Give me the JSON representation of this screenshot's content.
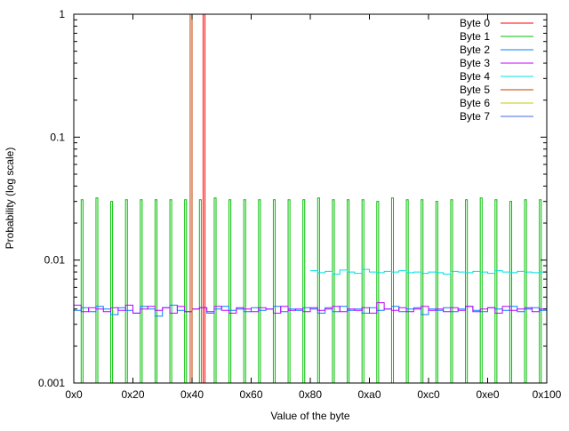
{
  "chart_data": {
    "type": "line",
    "title": "",
    "xlabel": "Value of the byte",
    "ylabel": "Probability (log scale)",
    "xlim": [
      0,
      256
    ],
    "ylim": [
      0.001,
      1
    ],
    "yscale": "log",
    "grid": false,
    "legend_position": "top-right",
    "x_ticks": [
      {
        "v": 0,
        "label": "0x0"
      },
      {
        "v": 32,
        "label": "0x20"
      },
      {
        "v": 64,
        "label": "0x40"
      },
      {
        "v": 96,
        "label": "0x60"
      },
      {
        "v": 128,
        "label": "0x80"
      },
      {
        "v": 160,
        "label": "0xa0"
      },
      {
        "v": 192,
        "label": "0xc0"
      },
      {
        "v": 224,
        "label": "0xe0"
      },
      {
        "v": 256,
        "label": "0x100"
      }
    ],
    "y_ticks": [
      {
        "v": 1,
        "label": "1"
      },
      {
        "v": 0.1,
        "label": "0.1"
      },
      {
        "v": 0.01,
        "label": "0.01"
      },
      {
        "v": 0.001,
        "label": "0.001"
      }
    ],
    "series": [
      {
        "name": "Byte 0",
        "color": "#ff0000",
        "kind": "spikes",
        "x": [
          70
        ],
        "values": [
          1.0
        ]
      },
      {
        "name": "Byte 1",
        "color": "#00c000",
        "kind": "spikes",
        "x": [
          4,
          12,
          20,
          28,
          36,
          44,
          52,
          60,
          68,
          76,
          84,
          92,
          100,
          108,
          116,
          124,
          132,
          140,
          148,
          156,
          164,
          172,
          180,
          188,
          196,
          204,
          212,
          220,
          228,
          236,
          244,
          252
        ],
        "values": [
          0.031,
          0.032,
          0.03,
          0.031,
          0.031,
          0.031,
          0.031,
          0.031,
          0.031,
          0.032,
          0.031,
          0.031,
          0.031,
          0.031,
          0.031,
          0.031,
          0.032,
          0.031,
          0.031,
          0.031,
          0.03,
          0.032,
          0.031,
          0.031,
          0.03,
          0.031,
          0.031,
          0.032,
          0.031,
          0.03,
          0.031,
          0.031
        ]
      },
      {
        "name": "Byte 2",
        "color": "#0080ff",
        "kind": "steps",
        "x0": 0,
        "step": 4,
        "values": [
          0.0039,
          0.0041,
          0.0038,
          0.0042,
          0.004,
          0.0036,
          0.0041,
          0.0039,
          0.0037,
          0.0042,
          0.004,
          0.0035,
          0.0041,
          0.0043,
          0.0039,
          0.0038,
          0.004,
          0.0041,
          0.0037,
          0.004,
          0.0042,
          0.0039,
          0.004,
          0.0038,
          0.0041,
          0.0039,
          0.004,
          0.0042,
          0.0038,
          0.004,
          0.0039,
          0.0041,
          0.004,
          0.0037,
          0.0041,
          0.0038,
          0.0042,
          0.0039,
          0.004,
          0.0037,
          0.0041,
          0.0039,
          0.004,
          0.0042,
          0.0038,
          0.004,
          0.0041,
          0.0036,
          0.004,
          0.0039,
          0.0041,
          0.0038,
          0.004,
          0.0042,
          0.0039,
          0.0038,
          0.0041,
          0.004,
          0.0039,
          0.0042,
          0.0038,
          0.004,
          0.0041,
          0.0039
        ]
      },
      {
        "name": "Byte 3",
        "color": "#c000ff",
        "kind": "steps",
        "x0": 0,
        "step": 4,
        "values": [
          0.0043,
          0.0038,
          0.0041,
          0.004,
          0.0038,
          0.0041,
          0.0039,
          0.0043,
          0.0037,
          0.004,
          0.0042,
          0.0039,
          0.0041,
          0.0037,
          0.0042,
          0.0038,
          0.004,
          0.0041,
          0.0038,
          0.0042,
          0.0039,
          0.0037,
          0.0041,
          0.004,
          0.0038,
          0.0041,
          0.004,
          0.0037,
          0.0042,
          0.0039,
          0.004,
          0.0038,
          0.0041,
          0.0039,
          0.004,
          0.0042,
          0.0038,
          0.004,
          0.0039,
          0.0041,
          0.0037,
          0.0045,
          0.004,
          0.0039,
          0.0041,
          0.0038,
          0.004,
          0.0042,
          0.0039,
          0.004,
          0.0038,
          0.0041,
          0.0039,
          0.0042,
          0.0038,
          0.004,
          0.0041,
          0.0037,
          0.0042,
          0.0039,
          0.004,
          0.0041,
          0.0038,
          0.004
        ]
      },
      {
        "name": "Byte 4",
        "color": "#00e0e0",
        "kind": "steps",
        "x0": 128,
        "step": 4,
        "values": [
          0.0082,
          0.0079,
          0.0081,
          0.0077,
          0.0083,
          0.008,
          0.0078,
          0.0084,
          0.008,
          0.0079,
          0.0081,
          0.008,
          0.0082,
          0.0079,
          0.008,
          0.0078,
          0.008,
          0.0079,
          0.0077,
          0.0081,
          0.008,
          0.0079,
          0.0081,
          0.008,
          0.0078,
          0.0082,
          0.008,
          0.0079,
          0.0081,
          0.008,
          0.0079,
          0.008
        ]
      },
      {
        "name": "Byte 5",
        "color": "#c04000",
        "kind": "spikes",
        "x": [
          63
        ],
        "values": [
          1.0
        ]
      },
      {
        "name": "Byte 6",
        "color": "#c8c800",
        "kind": "spikes",
        "x": [],
        "values": []
      },
      {
        "name": "Byte 7",
        "color": "#4169e1",
        "kind": "spikes",
        "x": [],
        "values": []
      }
    ]
  }
}
